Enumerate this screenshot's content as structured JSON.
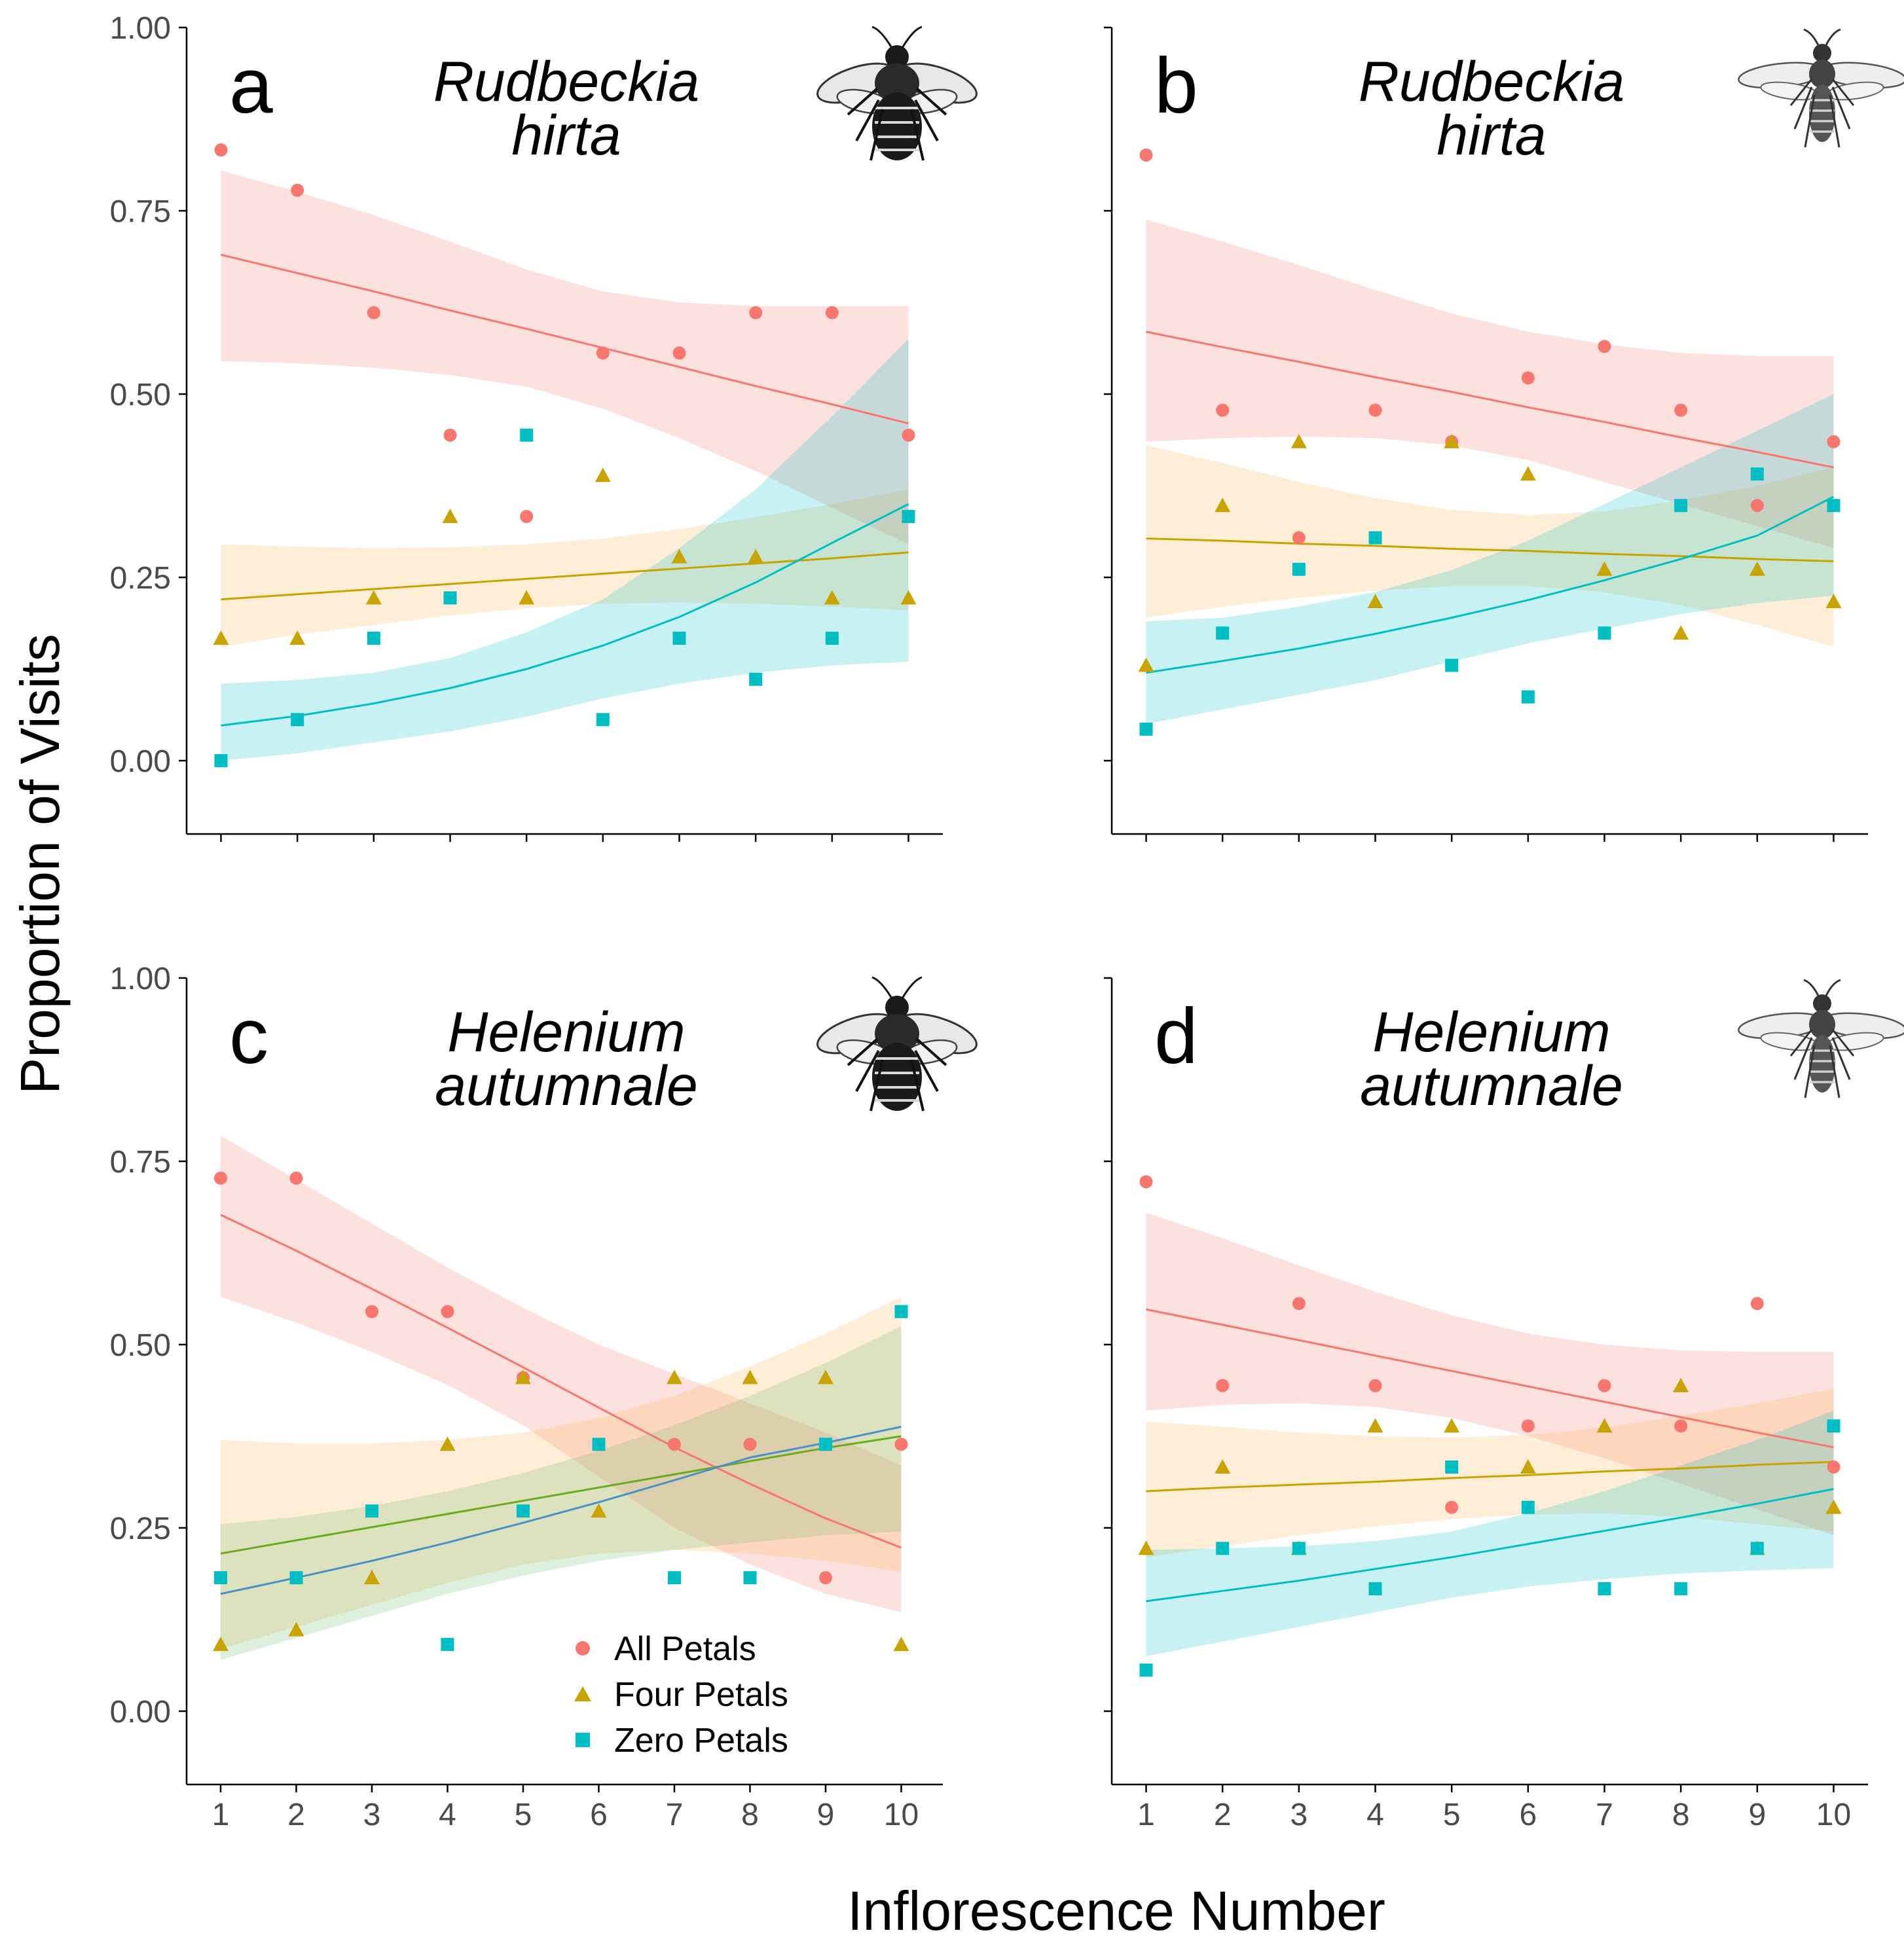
{
  "figure": {
    "ylabel": "Proportion of Visits",
    "xlabel": "Inflorescence Number"
  },
  "legend": {
    "entries": [
      {
        "label": "All Petals",
        "color": "#F8766D",
        "shape": "circle"
      },
      {
        "label": "Four Petals",
        "color": "#C9A400",
        "shape": "triangle"
      },
      {
        "label": "Zero Petals",
        "color": "#00BFC4",
        "shape": "square"
      }
    ]
  },
  "chart_data": [
    {
      "type": "scatter",
      "panel": "a",
      "title": "Rudbeckia hirta",
      "title_lines": [
        "Rudbeckia",
        "hirta"
      ],
      "pollinator": "bumble-bee",
      "x": [
        1,
        2,
        3,
        4,
        5,
        6,
        7,
        8,
        9,
        10
      ],
      "xlim": [
        0.55,
        10.45
      ],
      "ylim": [
        -0.1,
        1.0
      ],
      "yticks": [
        0.0,
        0.25,
        0.5,
        0.75,
        1.0
      ],
      "ytick_labels": [
        "0.00",
        "0.25",
        "0.50",
        "0.75",
        "1.00"
      ],
      "xtick_labels": [
        "1",
        "2",
        "3",
        "4",
        "5",
        "6",
        "7",
        "8",
        "9",
        "10"
      ],
      "show_y_labels": true,
      "show_x_labels": false,
      "series": [
        {
          "name": "All Petals",
          "color": "#F8766D",
          "fill": "#F8766D",
          "shape": "circle",
          "values": [
            0.833,
            0.778,
            0.611,
            0.444,
            0.333,
            0.556,
            0.556,
            0.611,
            0.611,
            0.444
          ],
          "fit": [
            0.69,
            0.665,
            0.64,
            0.614,
            0.589,
            0.563,
            0.537,
            0.511,
            0.486,
            0.46
          ],
          "ci_lower": [
            0.545,
            0.542,
            0.536,
            0.526,
            0.51,
            0.48,
            0.44,
            0.395,
            0.345,
            0.295
          ],
          "ci_upper": [
            0.805,
            0.776,
            0.744,
            0.708,
            0.67,
            0.64,
            0.625,
            0.62,
            0.62,
            0.62
          ]
        },
        {
          "name": "Four Petals",
          "color": "#C9A400",
          "fill": "#FFB347",
          "shape": "triangle",
          "values": [
            0.167,
            0.167,
            0.222,
            0.333,
            0.222,
            0.389,
            0.278,
            0.278,
            0.222,
            0.222
          ],
          "fit": [
            0.22,
            0.227,
            0.234,
            0.241,
            0.248,
            0.255,
            0.262,
            0.269,
            0.276,
            0.284
          ],
          "ci_lower": [
            0.155,
            0.172,
            0.185,
            0.198,
            0.208,
            0.214,
            0.216,
            0.214,
            0.21,
            0.205
          ],
          "ci_upper": [
            0.295,
            0.292,
            0.29,
            0.291,
            0.295,
            0.303,
            0.316,
            0.332,
            0.35,
            0.37
          ]
        },
        {
          "name": "Zero Petals",
          "color": "#00BFC4",
          "fill": "#00BFC4",
          "shape": "square",
          "values": [
            0.0,
            0.056,
            0.167,
            0.222,
            0.444,
            0.056,
            0.167,
            0.111,
            0.167,
            0.333
          ],
          "fit": [
            0.048,
            0.061,
            0.078,
            0.099,
            0.125,
            0.157,
            0.196,
            0.243,
            0.297,
            0.35
          ],
          "ci_lower": [
            0.0,
            0.01,
            0.025,
            0.04,
            0.06,
            0.085,
            0.105,
            0.12,
            0.13,
            0.135
          ],
          "ci_upper": [
            0.105,
            0.11,
            0.12,
            0.14,
            0.175,
            0.22,
            0.29,
            0.37,
            0.47,
            0.575
          ]
        }
      ]
    },
    {
      "type": "scatter",
      "panel": "b",
      "title": "Rudbeckia hirta",
      "title_lines": [
        "Rudbeckia",
        "hirta"
      ],
      "pollinator": "honey-bee",
      "x": [
        1,
        2,
        3,
        4,
        5,
        6,
        7,
        8,
        9,
        10
      ],
      "xlim": [
        0.55,
        10.45
      ],
      "ylim": [
        -0.1,
        1.0
      ],
      "yticks": [
        0.0,
        0.25,
        0.5,
        0.75,
        1.0
      ],
      "ytick_labels": [
        "0.00",
        "0.25",
        "0.50",
        "0.75",
        "1.00"
      ],
      "xtick_labels": [
        "1",
        "2",
        "3",
        "4",
        "5",
        "6",
        "7",
        "8",
        "9",
        "10"
      ],
      "show_y_labels": false,
      "show_x_labels": false,
      "series": [
        {
          "name": "All Petals",
          "color": "#F8766D",
          "fill": "#F8766D",
          "shape": "circle",
          "values": [
            0.826,
            0.478,
            0.304,
            0.478,
            0.435,
            0.522,
            0.565,
            0.478,
            0.348,
            0.435
          ],
          "fit": [
            0.585,
            0.564,
            0.544,
            0.523,
            0.503,
            0.482,
            0.462,
            0.441,
            0.421,
            0.4
          ],
          "ci_lower": [
            0.435,
            0.44,
            0.442,
            0.44,
            0.43,
            0.41,
            0.38,
            0.35,
            0.32,
            0.29
          ],
          "ci_upper": [
            0.738,
            0.708,
            0.676,
            0.642,
            0.61,
            0.585,
            0.568,
            0.556,
            0.552,
            0.552
          ]
        },
        {
          "name": "Four Petals",
          "color": "#C9A400",
          "fill": "#FFB347",
          "shape": "triangle",
          "values": [
            0.13,
            0.348,
            0.435,
            0.217,
            0.435,
            0.391,
            0.261,
            0.174,
            0.261,
            0.217
          ],
          "fit": [
            0.303,
            0.3,
            0.296,
            0.293,
            0.289,
            0.286,
            0.282,
            0.279,
            0.275,
            0.272
          ],
          "ci_lower": [
            0.195,
            0.21,
            0.222,
            0.232,
            0.238,
            0.238,
            0.23,
            0.212,
            0.185,
            0.155
          ],
          "ci_upper": [
            0.43,
            0.406,
            0.38,
            0.358,
            0.342,
            0.335,
            0.34,
            0.355,
            0.375,
            0.4
          ]
        },
        {
          "name": "Zero Petals",
          "color": "#00BFC4",
          "fill": "#00BFC4",
          "shape": "square",
          "values": [
            0.043,
            0.174,
            0.261,
            0.304,
            0.13,
            0.087,
            0.174,
            0.348,
            0.391,
            0.348
          ],
          "fit": [
            0.12,
            0.136,
            0.153,
            0.173,
            0.195,
            0.219,
            0.246,
            0.275,
            0.307,
            0.36
          ],
          "ci_lower": [
            0.05,
            0.07,
            0.09,
            0.11,
            0.135,
            0.16,
            0.18,
            0.2,
            0.215,
            0.225
          ],
          "ci_upper": [
            0.19,
            0.195,
            0.21,
            0.23,
            0.26,
            0.3,
            0.35,
            0.4,
            0.45,
            0.5
          ]
        }
      ]
    },
    {
      "type": "scatter",
      "panel": "c",
      "title": "Helenium autumnale",
      "title_lines": [
        "Helenium",
        "autumnale"
      ],
      "pollinator": "bumble-bee",
      "x": [
        1,
        2,
        3,
        4,
        5,
        6,
        7,
        8,
        9,
        10
      ],
      "xlim": [
        0.55,
        10.55
      ],
      "ylim": [
        -0.1,
        1.0
      ],
      "yticks": [
        0.0,
        0.25,
        0.5,
        0.75,
        1.0
      ],
      "ytick_labels": [
        "0.00",
        "0.25",
        "0.50",
        "0.75",
        "1.00"
      ],
      "xtick_labels": [
        "1",
        "2",
        "3",
        "4",
        "5",
        "6",
        "7",
        "8",
        "9",
        "10"
      ],
      "show_y_labels": true,
      "show_x_labels": true,
      "series": [
        {
          "name": "All Petals",
          "color": "#F8766D",
          "fill": "#F8766D",
          "shape": "circle",
          "values": [
            0.727,
            0.727,
            0.545,
            0.545,
            0.455,
            0.364,
            0.364,
            0.364,
            0.182,
            0.364
          ],
          "fit": [
            0.677,
            0.628,
            0.576,
            0.523,
            0.469,
            0.414,
            0.36,
            0.31,
            0.263,
            0.223
          ],
          "ci_lower": [
            0.565,
            0.53,
            0.49,
            0.445,
            0.39,
            0.32,
            0.25,
            0.2,
            0.16,
            0.135
          ],
          "ci_upper": [
            0.785,
            0.725,
            0.665,
            0.605,
            0.55,
            0.5,
            0.46,
            0.42,
            0.38,
            0.335
          ]
        },
        {
          "name": "Four Petals",
          "color": "#C9A400",
          "fill": "#FFB347",
          "shape": "triangle",
          "values": [
            0.091,
            0.111,
            0.182,
            0.364,
            0.455,
            0.273,
            0.455,
            0.455,
            0.455,
            0.091
          ],
          "fit": [
            0.215,
            0.233,
            0.251,
            0.269,
            0.287,
            0.305,
            0.323,
            0.341,
            0.359,
            0.375
          ],
          "ci_lower": [
            0.085,
            0.115,
            0.145,
            0.175,
            0.2,
            0.215,
            0.22,
            0.215,
            0.205,
            0.19
          ],
          "ci_upper": [
            0.37,
            0.365,
            0.365,
            0.37,
            0.38,
            0.4,
            0.43,
            0.47,
            0.515,
            0.565
          ]
        },
        {
          "name": "Zero Petals",
          "color": "#00BFC4",
          "fill": "#66BB6A",
          "shape": "square",
          "values": [
            0.182,
            0.182,
            0.273,
            0.091,
            0.273,
            0.364,
            0.182,
            0.182,
            0.364,
            0.545
          ],
          "fit": [
            0.16,
            0.182,
            0.205,
            0.23,
            0.257,
            0.285,
            0.315,
            0.346,
            0.366,
            0.388
          ],
          "ci_lower": [
            0.07,
            0.1,
            0.13,
            0.16,
            0.185,
            0.205,
            0.22,
            0.23,
            0.24,
            0.245
          ],
          "ci_upper": [
            0.255,
            0.265,
            0.28,
            0.3,
            0.325,
            0.355,
            0.39,
            0.43,
            0.475,
            0.525
          ]
        }
      ]
    },
    {
      "type": "scatter",
      "panel": "d",
      "title": "Helenium autumnale",
      "title_lines": [
        "Helenium",
        "autumnale"
      ],
      "pollinator": "honey-bee",
      "x": [
        1,
        2,
        3,
        4,
        5,
        6,
        7,
        8,
        9,
        10
      ],
      "xlim": [
        0.55,
        10.45
      ],
      "ylim": [
        -0.1,
        1.0
      ],
      "yticks": [
        0.0,
        0.25,
        0.5,
        0.75,
        1.0
      ],
      "ytick_labels": [
        "0.00",
        "0.25",
        "0.50",
        "0.75",
        "1.00"
      ],
      "xtick_labels": [
        "1",
        "2",
        "3",
        "4",
        "5",
        "6",
        "7",
        "8",
        "9",
        "10"
      ],
      "show_y_labels": false,
      "show_x_labels": true,
      "series": [
        {
          "name": "All Petals",
          "color": "#F8766D",
          "fill": "#F8766D",
          "shape": "circle",
          "values": [
            0.722,
            0.444,
            0.556,
            0.444,
            0.278,
            0.389,
            0.444,
            0.389,
            0.556,
            0.333
          ],
          "fit": [
            0.548,
            0.527,
            0.506,
            0.485,
            0.464,
            0.443,
            0.422,
            0.401,
            0.38,
            0.36
          ],
          "ci_lower": [
            0.41,
            0.418,
            0.42,
            0.415,
            0.4,
            0.375,
            0.345,
            0.31,
            0.275,
            0.24
          ],
          "ci_upper": [
            0.68,
            0.645,
            0.608,
            0.572,
            0.54,
            0.515,
            0.5,
            0.492,
            0.49,
            0.49
          ]
        },
        {
          "name": "Four Petals",
          "color": "#C9A400",
          "fill": "#FFB347",
          "shape": "triangle",
          "values": [
            0.222,
            0.333,
            0.222,
            0.389,
            0.389,
            0.333,
            0.389,
            0.444,
            0.222,
            0.278
          ],
          "fit": [
            0.3,
            0.305,
            0.309,
            0.313,
            0.318,
            0.322,
            0.327,
            0.331,
            0.336,
            0.34
          ],
          "ci_lower": [
            0.21,
            0.225,
            0.24,
            0.252,
            0.262,
            0.268,
            0.27,
            0.265,
            0.255,
            0.245
          ],
          "ci_upper": [
            0.395,
            0.388,
            0.38,
            0.375,
            0.373,
            0.377,
            0.387,
            0.403,
            0.42,
            0.44
          ]
        },
        {
          "name": "Zero Petals",
          "color": "#00BFC4",
          "fill": "#00BFC4",
          "shape": "square",
          "values": [
            0.056,
            0.222,
            0.222,
            0.167,
            0.333,
            0.278,
            0.167,
            0.167,
            0.222,
            0.389
          ],
          "fit": [
            0.15,
            0.164,
            0.178,
            0.194,
            0.21,
            0.228,
            0.246,
            0.264,
            0.283,
            0.303
          ],
          "ci_lower": [
            0.075,
            0.095,
            0.115,
            0.135,
            0.155,
            0.17,
            0.18,
            0.188,
            0.192,
            0.195
          ],
          "ci_upper": [
            0.22,
            0.222,
            0.225,
            0.232,
            0.245,
            0.27,
            0.3,
            0.335,
            0.37,
            0.41
          ]
        }
      ]
    }
  ]
}
